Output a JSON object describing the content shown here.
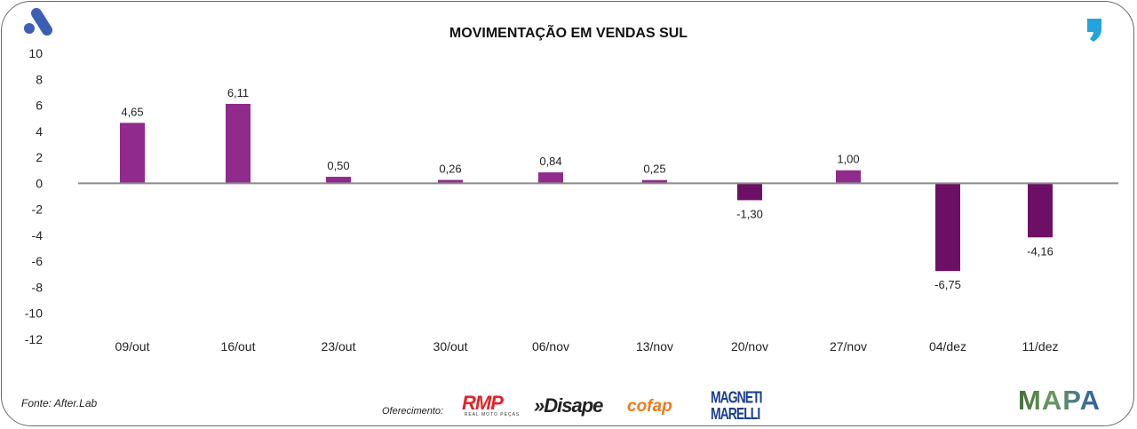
{
  "title": "MOVIMENTAÇÃO EM VENDAS SUL",
  "footer": {
    "source": "Fonte: After.Lab",
    "sponsor_label": "Oferecimento:",
    "sponsor_logos": [
      "RMP",
      "REAL MOTO PEÇAS",
      "»Disape",
      "cofap",
      "MAGNETI MARELLI",
      "MAPA"
    ]
  },
  "icons": {
    "top_left": "after-lab-logo-icon",
    "top_right": "comma-logo-icon"
  },
  "colors": {
    "positive": "#912a8d",
    "negative": "#6e0f66",
    "axis": "#8a8a8a",
    "logo_blue": "#3b5fb5",
    "comma_blue": "#22a4dc"
  },
  "chart_data": {
    "type": "bar",
    "title": "MOVIMENTAÇÃO EM VENDAS SUL",
    "xlabel": "",
    "ylabel": "",
    "categories": [
      "09/out",
      "16/out",
      "23/out",
      "30/out",
      "06/nov",
      "13/nov",
      "20/nov",
      "27/nov",
      "04/dez",
      "11/dez"
    ],
    "values": [
      4.65,
      6.11,
      0.5,
      0.26,
      0.84,
      0.25,
      -1.3,
      1.0,
      -6.75,
      -4.16
    ],
    "data_labels": [
      "4,65",
      "6,11",
      "0,50",
      "0,26",
      "0,84",
      "0,25",
      "-1,30",
      "1,00",
      "-6,75",
      "-4,16"
    ],
    "ylim": [
      -12,
      10
    ],
    "yticks": [
      10,
      8,
      6,
      4,
      2,
      0,
      -2,
      -4,
      -6,
      -8,
      -10,
      -12
    ],
    "ytick_labels": [
      "10",
      "8",
      "6",
      "4",
      "2",
      "0",
      "-2",
      "-4",
      "-6",
      "-8",
      "-10",
      "-12"
    ],
    "grid": false,
    "legend": "none"
  }
}
